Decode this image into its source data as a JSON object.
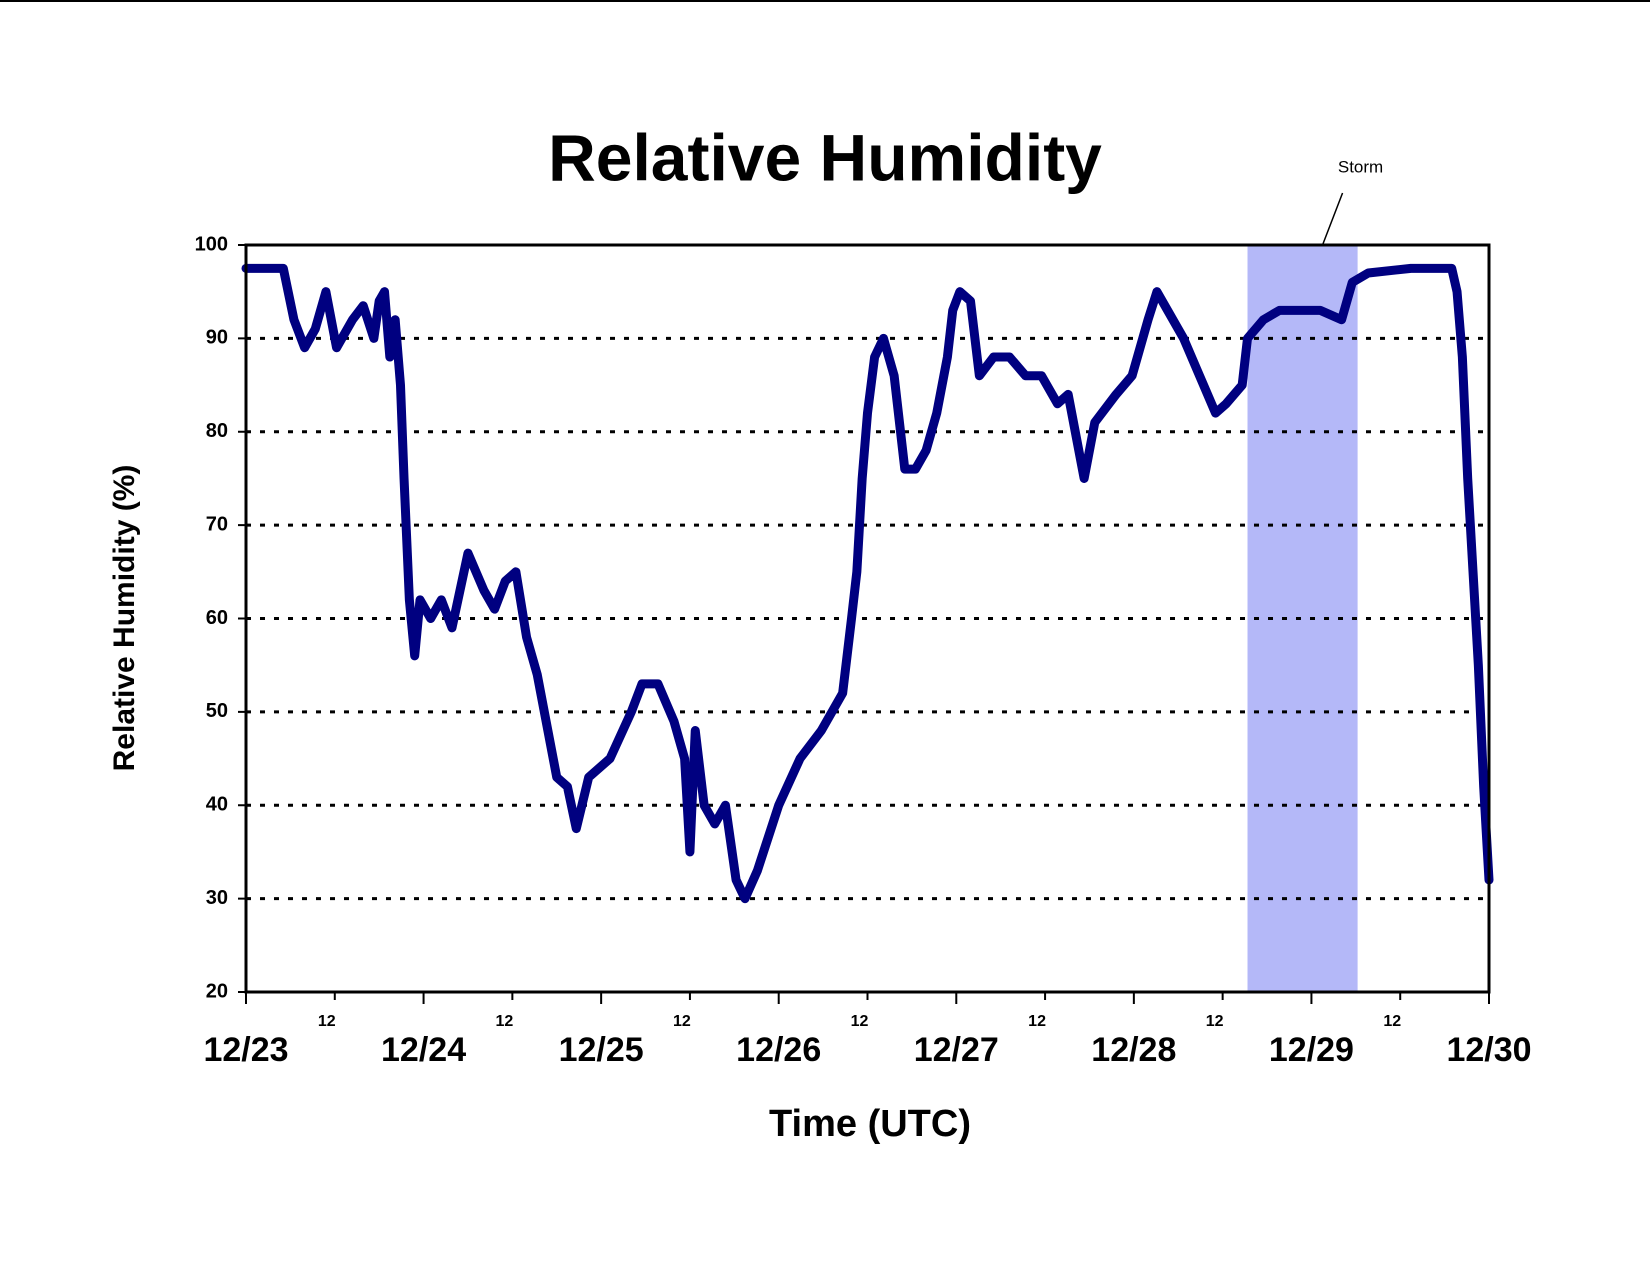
{
  "chart_data": {
    "type": "line",
    "title": "Relative Humidity",
    "xlabel": "Time (UTC)",
    "ylabel": "Relative Humidity (%)",
    "x": [
      0,
      0.21,
      0.27,
      0.33,
      0.39,
      0.45,
      0.51,
      0.6,
      0.66,
      0.72,
      0.75,
      0.78,
      0.81,
      0.84,
      0.87,
      0.89,
      0.92,
      0.95,
      0.98,
      1.04,
      1.1,
      1.16,
      1.25,
      1.34,
      1.4,
      1.46,
      1.52,
      1.58,
      1.64,
      1.7,
      1.75,
      1.81,
      1.86,
      1.93,
      2.05,
      2.17,
      2.23,
      2.32,
      2.41,
      2.47,
      2.5,
      2.53,
      2.58,
      2.64,
      2.7,
      2.76,
      2.81,
      2.88,
      3.0,
      3.12,
      3.24,
      3.36,
      3.41,
      3.44,
      3.47,
      3.5,
      3.54,
      3.59,
      3.65,
      3.71,
      3.77,
      3.83,
      3.89,
      3.95,
      3.98,
      4.02,
      4.08,
      4.13,
      4.21,
      4.3,
      4.39,
      4.48,
      4.57,
      4.63,
      4.67,
      4.72,
      4.78,
      4.9,
      4.99,
      5.08,
      5.13,
      5.19,
      5.28,
      5.37,
      5.46,
      5.52,
      5.61,
      5.64,
      5.73,
      5.82,
      5.93,
      6.05,
      6.17,
      6.23,
      6.32,
      6.56,
      6.79,
      6.82,
      6.85,
      6.88,
      6.91,
      6.94,
      6.97,
      7.0
    ],
    "series": [
      {
        "name": "Relative Humidity",
        "color": "#000080",
        "values": [
          97.5,
          97.5,
          92,
          89,
          91,
          95,
          89,
          92,
          93.5,
          90,
          94,
          95,
          88,
          92,
          85,
          75,
          62,
          56,
          62,
          60,
          62,
          59,
          67,
          63,
          61,
          64,
          65,
          58,
          54,
          48,
          43,
          42,
          37.5,
          43,
          45,
          50,
          53,
          53,
          49,
          45,
          35,
          48,
          40,
          38,
          40,
          32,
          30,
          33,
          40,
          45,
          48,
          52,
          60,
          65,
          75,
          82,
          88,
          90,
          86,
          76,
          76,
          78,
          82,
          88,
          93,
          95,
          94,
          86,
          88,
          88,
          86,
          86,
          83,
          84,
          80,
          75,
          81,
          84,
          86,
          92,
          95,
          93,
          90,
          86,
          82,
          83,
          85,
          90,
          92,
          93,
          93,
          93,
          92,
          96,
          97,
          97.5,
          97.5,
          95,
          88,
          75,
          65,
          55,
          42,
          32
        ]
      }
    ],
    "xlim": [
      0,
      7
    ],
    "ylim": [
      20,
      100
    ],
    "xticks": [
      {
        "value": 0,
        "label": "12/23"
      },
      {
        "value": 0.5,
        "label": "12"
      },
      {
        "value": 1,
        "label": "12/24"
      },
      {
        "value": 1.5,
        "label": "12"
      },
      {
        "value": 2,
        "label": "12/25"
      },
      {
        "value": 2.5,
        "label": "12"
      },
      {
        "value": 3,
        "label": "12/26"
      },
      {
        "value": 3.5,
        "label": "12"
      },
      {
        "value": 4,
        "label": "12/27"
      },
      {
        "value": 4.5,
        "label": "12"
      },
      {
        "value": 5,
        "label": "12/28"
      },
      {
        "value": 5.5,
        "label": "12"
      },
      {
        "value": 6,
        "label": "12/29"
      },
      {
        "value": 6.5,
        "label": "12"
      },
      {
        "value": 7,
        "label": "12/30"
      }
    ],
    "yticks": [
      20,
      30,
      40,
      50,
      60,
      70,
      80,
      90,
      100
    ],
    "grid": true,
    "annotations": [
      {
        "text": "Storm",
        "x_range": [
          5.64,
          6.26
        ],
        "color": "#b4b8f8"
      }
    ]
  }
}
